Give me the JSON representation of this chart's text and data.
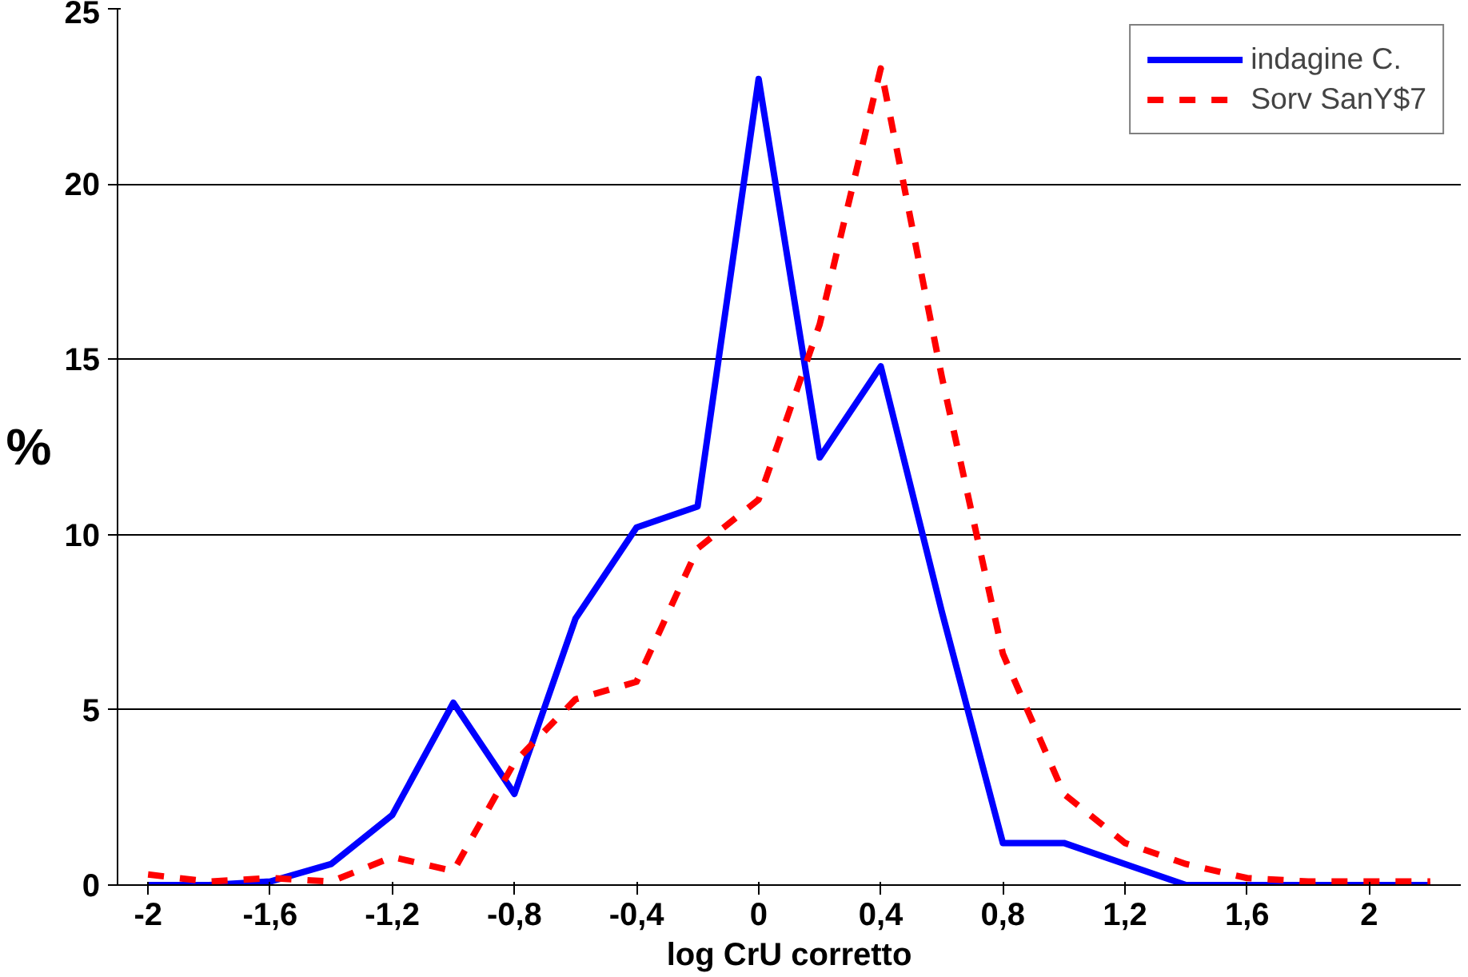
{
  "chart_data": {
    "type": "line",
    "xlabel": "log CrU corretto",
    "ylabel": "%",
    "categories": [
      "-2",
      null,
      "-1,6",
      null,
      "-1,2",
      null,
      "-0,8",
      null,
      "-0,4",
      null,
      "0",
      null,
      "0,4",
      null,
      "0,8",
      null,
      "1,2",
      null,
      "1,6",
      null,
      "2",
      null
    ],
    "series": [
      {
        "name": "indagine C.",
        "color": "#0000ff",
        "line_style": "solid",
        "values": [
          0,
          0,
          0.1,
          0.6,
          2.0,
          5.2,
          2.6,
          7.6,
          10.2,
          10.8,
          23,
          12.2,
          14.8,
          7.8,
          1.2,
          1.2,
          0.6,
          0,
          0,
          0,
          0,
          0
        ]
      },
      {
        "name": "Sorv SanY$7",
        "color": "#ff0000",
        "line_style": "dashed",
        "values": [
          0.3,
          0.1,
          0.2,
          0.1,
          0.8,
          0.4,
          3.5,
          5.3,
          5.8,
          9.6,
          11,
          16,
          23.3,
          14.5,
          6.6,
          2.6,
          1.2,
          0.6,
          0.2,
          0.1,
          0.1,
          0.1
        ]
      }
    ],
    "ylim": [
      0,
      25
    ],
    "yticks": [
      0,
      5,
      10,
      15,
      20,
      25
    ],
    "grid": "y",
    "legend": "top right",
    "marker": "none"
  }
}
